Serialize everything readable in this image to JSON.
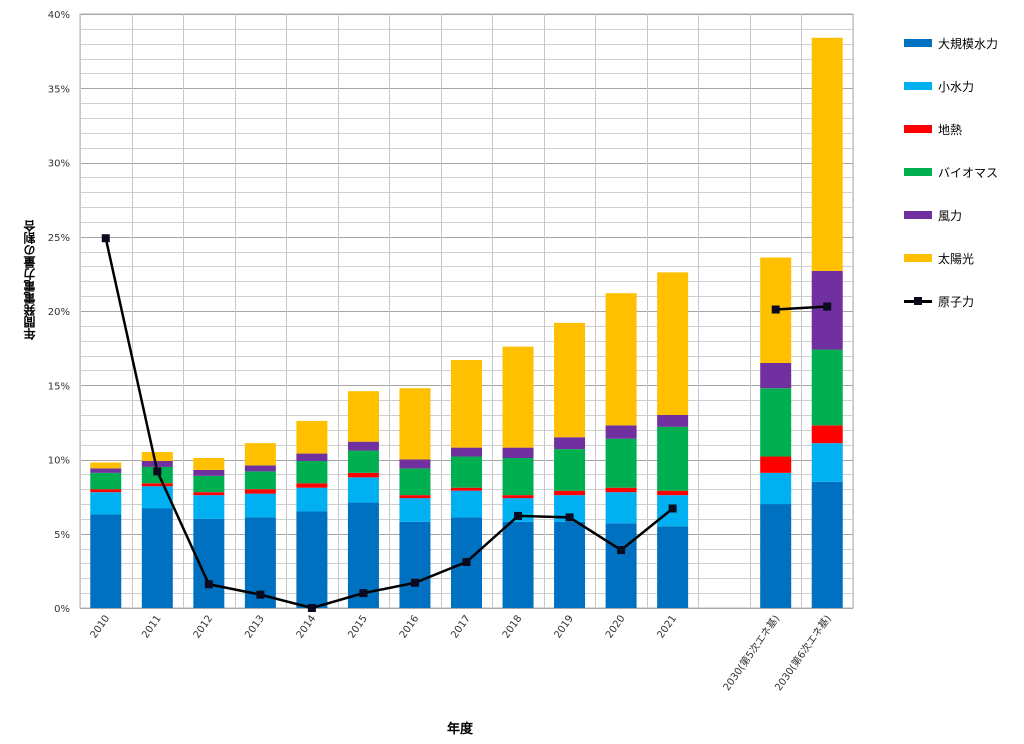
{
  "chart_data": {
    "type": "bar",
    "stacked": true,
    "ylabel": "年間発電電力量の割合",
    "xlabel": "年度",
    "ylim": [
      0,
      40
    ],
    "y_ticks": [
      "0%",
      "5%",
      "10%",
      "15%",
      "20%",
      "25%",
      "30%",
      "35%",
      "40%"
    ],
    "categories": [
      "2010",
      "2011",
      "2012",
      "2013",
      "2014",
      "2015",
      "2016",
      "2017",
      "2018",
      "2019",
      "2020",
      "2021",
      "",
      "2030(第5次エネ基)",
      "2030(第6次エネ基)"
    ],
    "series": [
      {
        "name": "大規模水力",
        "color": "#0070C0",
        "values": [
          6.3,
          6.7,
          6.0,
          6.1,
          6.5,
          7.1,
          5.8,
          6.1,
          5.8,
          5.8,
          5.7,
          5.5,
          null,
          7.0,
          8.5
        ]
      },
      {
        "name": "小水力",
        "color": "#00B0F0",
        "values": [
          1.5,
          1.5,
          1.6,
          1.6,
          1.6,
          1.7,
          1.6,
          1.8,
          1.6,
          1.8,
          2.1,
          2.1,
          null,
          2.1,
          2.6
        ]
      },
      {
        "name": "地熱",
        "color": "#FF0000",
        "values": [
          0.2,
          0.2,
          0.2,
          0.3,
          0.3,
          0.3,
          0.2,
          0.2,
          0.2,
          0.3,
          0.3,
          0.3,
          null,
          1.1,
          1.2
        ]
      },
      {
        "name": "バイオマス",
        "color": "#00B050",
        "values": [
          1.1,
          1.1,
          1.1,
          1.2,
          1.5,
          1.5,
          1.8,
          2.1,
          2.5,
          2.8,
          3.3,
          4.3,
          null,
          4.6,
          5.1
        ]
      },
      {
        "name": "風力",
        "color": "#7030A0",
        "values": [
          0.3,
          0.4,
          0.4,
          0.4,
          0.5,
          0.6,
          0.6,
          0.6,
          0.7,
          0.8,
          0.9,
          0.8,
          null,
          1.7,
          5.3
        ]
      },
      {
        "name": "太陽光",
        "color": "#FFC000",
        "values": [
          0.4,
          0.6,
          0.8,
          1.5,
          2.2,
          3.4,
          4.8,
          5.9,
          6.8,
          7.7,
          8.9,
          9.6,
          null,
          7.1,
          15.7
        ]
      }
    ],
    "line_series": {
      "name": "原子力",
      "color": "#000000",
      "values": [
        24.9,
        9.2,
        1.6,
        0.9,
        0.0,
        1.0,
        1.7,
        3.1,
        6.2,
        6.1,
        3.9,
        6.7,
        null,
        20.1,
        20.3
      ]
    },
    "grid": true,
    "legend_position": "right"
  },
  "legend": {
    "items": [
      {
        "label": "大規模水力",
        "color": "#0070C0"
      },
      {
        "label": "小水力",
        "color": "#00B0F0"
      },
      {
        "label": "地熱",
        "color": "#FF0000"
      },
      {
        "label": "バイオマス",
        "color": "#00B050"
      },
      {
        "label": "風力",
        "color": "#7030A0"
      },
      {
        "label": "太陽光",
        "color": "#FFC000"
      }
    ],
    "line_label": "原子力"
  }
}
